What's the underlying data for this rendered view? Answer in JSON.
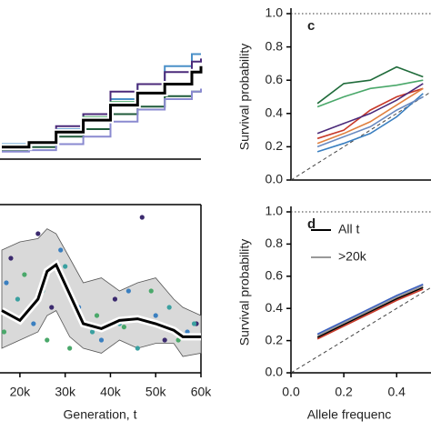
{
  "chart_data": [
    {
      "type": "step",
      "xlim": [
        15600,
        60000
      ],
      "ylim": [
        0,
        1
      ],
      "x": [
        16000,
        22000,
        28000,
        34000,
        40000,
        46000,
        52000,
        58000,
        60000
      ],
      "series": [
        {
          "color": "#4a90c8",
          "values": [
            0.1,
            0.12,
            0.2,
            0.3,
            0.4,
            0.5,
            0.62,
            0.7,
            0.7
          ]
        },
        {
          "color": "#4b2a7a",
          "values": [
            0.08,
            0.1,
            0.22,
            0.3,
            0.45,
            0.5,
            0.58,
            0.65,
            0.67
          ]
        },
        {
          "color": "#3aa05a",
          "values": [
            0.07,
            0.1,
            0.18,
            0.28,
            0.38,
            0.45,
            0.5,
            0.58,
            0.6
          ]
        },
        {
          "color": "#1f5a3a",
          "values": [
            0.06,
            0.08,
            0.15,
            0.2,
            0.3,
            0.35,
            0.42,
            0.45,
            0.45
          ]
        },
        {
          "color": "#8a8ad0",
          "values": [
            0.05,
            0.06,
            0.1,
            0.15,
            0.25,
            0.33,
            0.4,
            0.45,
            0.47
          ]
        },
        {
          "color": "#000000",
          "values": [
            0.08,
            0.11,
            0.18,
            0.26,
            0.36,
            0.44,
            0.5,
            0.58,
            0.62
          ]
        }
      ]
    },
    {
      "type": "scatter_band",
      "xlim": [
        15600,
        60000
      ],
      "ylim": [
        0,
        1
      ],
      "xticks": [
        {
          "value": 20000,
          "label": "20k"
        },
        {
          "value": 30000,
          "label": "30k"
        },
        {
          "value": 40000,
          "label": "40k"
        },
        {
          "value": 50000,
          "label": "50k"
        },
        {
          "value": 60000,
          "label": "60k"
        }
      ],
      "x_label": "Generation, t",
      "band": {
        "color": "#d9d9d9",
        "x": [
          16000,
          20000,
          24000,
          26000,
          28000,
          31000,
          34000,
          38000,
          42000,
          46000,
          50000,
          54000,
          56000,
          60000
        ],
        "upper": [
          0.75,
          0.8,
          0.82,
          0.88,
          0.85,
          0.7,
          0.55,
          0.58,
          0.5,
          0.55,
          0.58,
          0.45,
          0.4,
          0.35
        ],
        "lower": [
          0.15,
          0.2,
          0.25,
          0.35,
          0.38,
          0.22,
          0.15,
          0.12,
          0.2,
          0.15,
          0.18,
          0.18,
          0.1,
          0.12
        ],
        "mean": [
          0.38,
          0.32,
          0.45,
          0.62,
          0.66,
          0.48,
          0.3,
          0.27,
          0.32,
          0.33,
          0.3,
          0.26,
          0.22,
          0.22
        ]
      },
      "series": [
        {
          "color": "#3a7fc0",
          "x": [
            17000,
            23000,
            29000,
            33000,
            38000,
            44000,
            50000,
            57000
          ],
          "values": [
            0.55,
            0.3,
            0.75,
            0.4,
            0.2,
            0.5,
            0.35,
            0.25
          ]
        },
        {
          "color": "#3b2a6e",
          "x": [
            18000,
            24000,
            27000,
            35000,
            41000,
            47000,
            52000,
            59000
          ],
          "values": [
            0.7,
            0.85,
            0.4,
            0.3,
            0.45,
            0.95,
            0.2,
            0.3
          ]
        },
        {
          "color": "#4aa86a",
          "x": [
            16500,
            21000,
            26000,
            31000,
            37000,
            43000,
            49000,
            55000
          ],
          "values": [
            0.25,
            0.6,
            0.2,
            0.15,
            0.35,
            0.28,
            0.5,
            0.2
          ]
        },
        {
          "color": "#3aa0a0",
          "x": [
            19500,
            25000,
            30000,
            36000,
            42000,
            46000,
            53000,
            58500
          ],
          "values": [
            0.45,
            0.5,
            0.65,
            0.25,
            0.3,
            0.15,
            0.4,
            0.3
          ]
        }
      ]
    },
    {
      "type": "line",
      "panel": "c",
      "xlim": [
        0,
        0.53
      ],
      "ylim": [
        0,
        1
      ],
      "yticks": [
        {
          "value": 0,
          "label": "0.0"
        },
        0.2,
        0.4,
        0.6,
        0.8,
        {
          "value": 1,
          "label": "1.0"
        }
      ],
      "y_label": "Survival probability",
      "x": [
        0.1,
        0.2,
        0.3,
        0.4,
        0.5
      ],
      "series": [
        {
          "color": "#1f6b3a",
          "values": [
            0.46,
            0.58,
            0.6,
            0.68,
            0.62
          ]
        },
        {
          "color": "#4aa86a",
          "values": [
            0.44,
            0.5,
            0.55,
            0.57,
            0.6
          ]
        },
        {
          "color": "#c83a2a",
          "values": [
            0.25,
            0.3,
            0.42,
            0.5,
            0.55
          ]
        },
        {
          "color": "#e08040",
          "values": [
            0.22,
            0.28,
            0.35,
            0.45,
            0.55
          ]
        },
        {
          "color": "#3a7fc0",
          "values": [
            0.17,
            0.22,
            0.28,
            0.38,
            0.52
          ]
        },
        {
          "color": "#4b2a7a",
          "values": [
            0.28,
            0.34,
            0.4,
            0.48,
            0.58
          ]
        },
        {
          "color": "#6a8ac0",
          "values": [
            0.2,
            0.26,
            0.32,
            0.42,
            0.5
          ]
        }
      ]
    },
    {
      "type": "line",
      "panel": "d",
      "xlim": [
        0,
        0.53
      ],
      "ylim": [
        0,
        1
      ],
      "xticks": [
        {
          "value": 0,
          "label": "0.0"
        },
        0.2,
        0.4
      ],
      "yticks": [
        {
          "value": 0,
          "label": "0.0"
        },
        0.2,
        0.4,
        0.6,
        0.8,
        {
          "value": 1,
          "label": "1.0"
        }
      ],
      "x_label": "Allele frequenc",
      "y_label": "Survival probability",
      "x": [
        0.1,
        0.2,
        0.3,
        0.4,
        0.5
      ],
      "series": [
        {
          "name": "All t",
          "color": "#000000",
          "values": [
            0.22,
            0.3,
            0.38,
            0.46,
            0.53
          ]
        },
        {
          "name": ">20k",
          "color": "#999999",
          "values": [
            0.23,
            0.31,
            0.39,
            0.47,
            0.54
          ]
        },
        {
          "color": "#c83a2a",
          "values": [
            0.21,
            0.29,
            0.37,
            0.45,
            0.52
          ]
        },
        {
          "color": "#3a5fc0",
          "values": [
            0.24,
            0.32,
            0.4,
            0.48,
            0.55
          ]
        }
      ]
    }
  ]
}
